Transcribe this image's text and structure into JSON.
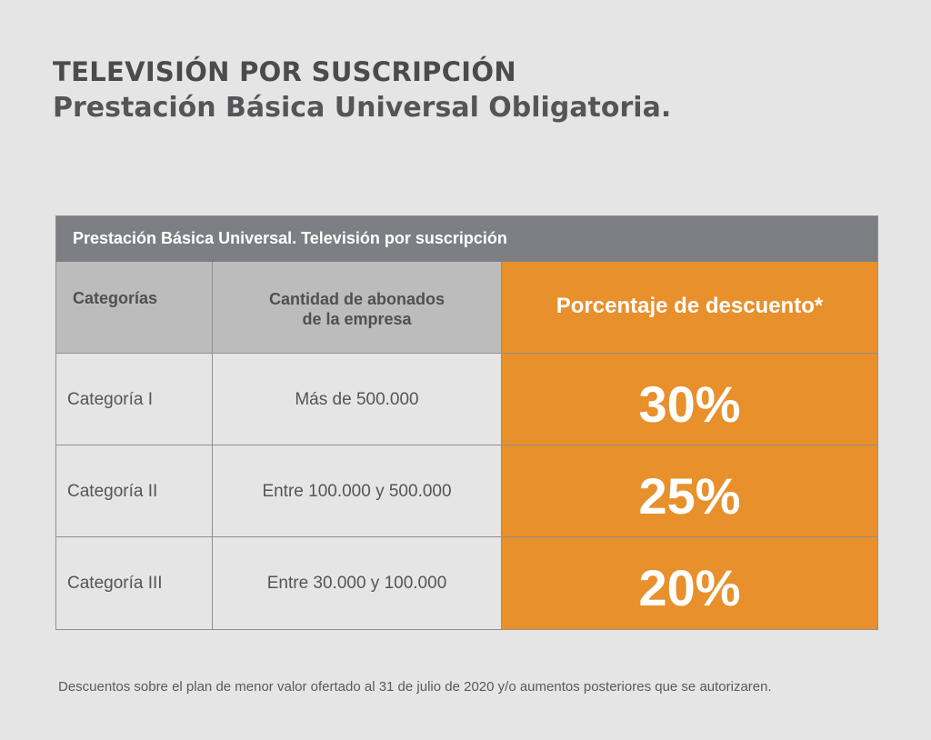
{
  "heading": {
    "title": "TELEVISIÓN POR SUSCRIPCIÓN",
    "subtitle": "Prestación Básica Universal Obligatoria."
  },
  "table": {
    "caption": "Prestación Básica Universal. Televisión por suscripción",
    "columns": {
      "category": "Categorías",
      "subscribers_line1": "Cantidad de abonados",
      "subscribers_line2": "de la empresa",
      "discount": "Porcentaje de descuento*"
    },
    "rows": [
      {
        "category": "Categoría I",
        "subscribers": "Más de 500.000",
        "discount": "30%"
      },
      {
        "category": "Categoría II",
        "subscribers": "Entre 100.000 y 500.000",
        "discount": "25%"
      },
      {
        "category": "Categoría III",
        "subscribers": "Entre 30.000 y 100.000",
        "discount": "20%"
      }
    ]
  },
  "footnote": "Descuentos sobre el plan de menor valor ofertado al 31 de julio de 2020 y/o aumentos posteriores que se autorizaren.",
  "colors": {
    "background": "#e6e5e5",
    "header_bar": "#7d7f84",
    "column_header": "#bcbcbd",
    "accent_orange": "#e8902c"
  }
}
